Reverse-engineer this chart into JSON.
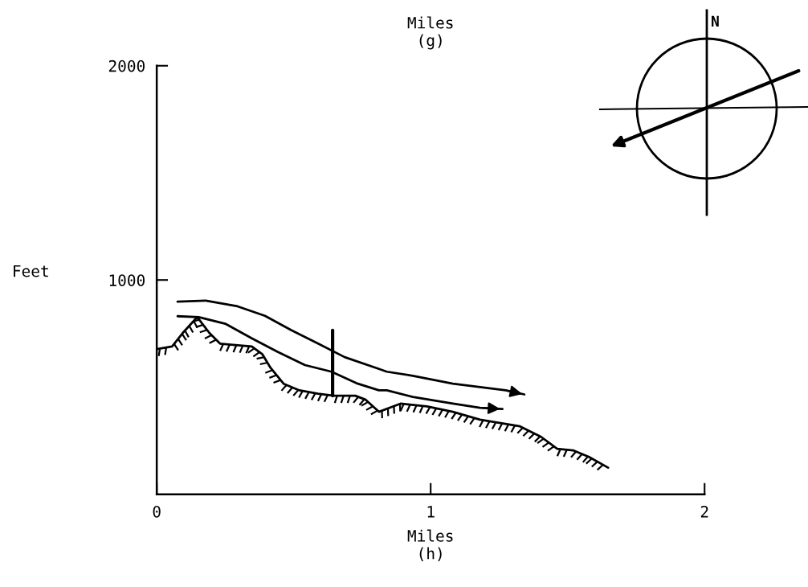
{
  "chart_data": {
    "type": "line",
    "title": "Miles\n(g)",
    "xlabel": "Miles\n(h)",
    "ylabel": "Feet",
    "xlim": [
      0,
      2
    ],
    "ylim": [
      0,
      2000
    ],
    "xticks": [
      0,
      1,
      2
    ],
    "yticks": [
      1000,
      2000
    ],
    "annotations": [
      "N"
    ],
    "series": [
      {
        "color": "#000000",
        "x": [
          0,
          0.056,
          0.095,
          0.148,
          0.192,
          0.231,
          0.279,
          0.347,
          0.386,
          0.415,
          0.463,
          0.521,
          0.589,
          0.647,
          0.725,
          0.763,
          0.811,
          0.89,
          0.986,
          1.081,
          1.18,
          1.326,
          1.403,
          1.462,
          1.52,
          1.578,
          1.648
        ],
        "values": [
          678,
          690,
          753,
          827,
          753,
          703,
          697,
          690,
          653,
          591,
          516,
          485,
          469,
          460,
          460,
          441,
          385,
          423,
          410,
          385,
          348,
          317,
          268,
          212,
          205,
          174,
          124
        ]
      },
      {
        "color": "#000000",
        "x": [
          0.076,
          0.179,
          0.295,
          0.395,
          0.492,
          0.589,
          0.686,
          0.811,
          0.84,
          0.935,
          1.081,
          1.274,
          1.342
        ],
        "values": [
          899,
          904,
          877,
          833,
          765,
          703,
          640,
          585,
          572,
          553,
          516,
          485,
          466
        ]
      },
      {
        "color": "#000000",
        "x": [
          0.076,
          0.153,
          0.25,
          0.347,
          0.441,
          0.541,
          0.638,
          0.734,
          0.811,
          0.84,
          0.935,
          1.081,
          1.18,
          1.262
        ],
        "values": [
          831,
          827,
          796,
          728,
          665,
          603,
          572,
          516,
          485,
          485,
          454,
          423,
          404,
          398
        ]
      },
      {
        "color": "#000000",
        "x": [
          0.642,
          0.642
        ],
        "values": [
          460,
          765
        ]
      }
    ]
  }
}
